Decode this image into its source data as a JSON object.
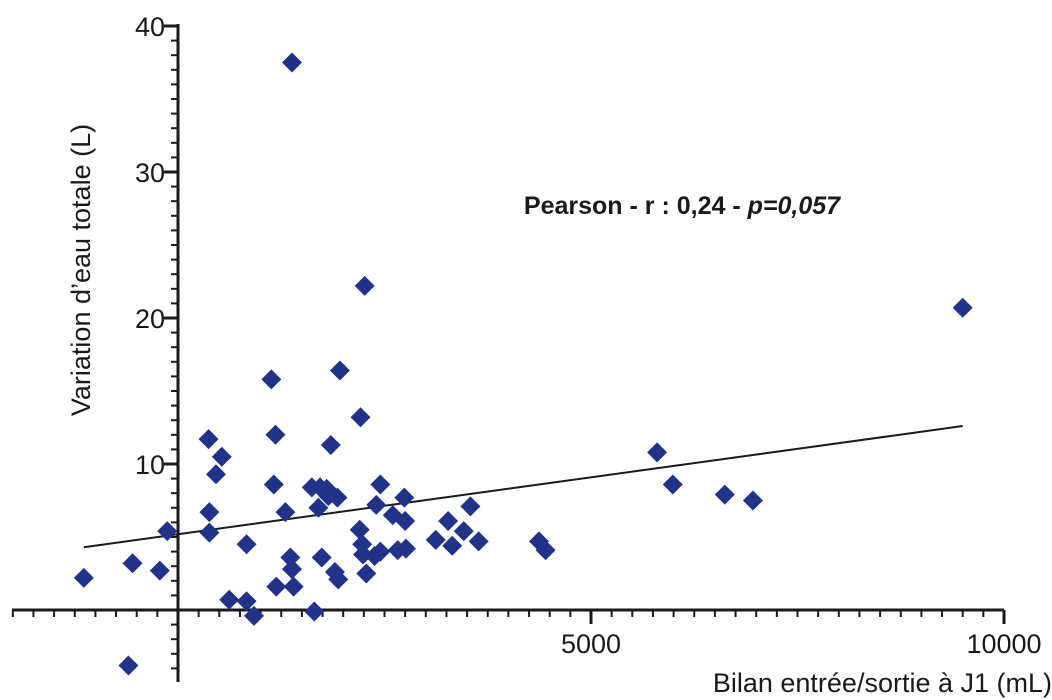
{
  "chart_data": {
    "type": "scatter",
    "xlabel": "Bilan entrée/sortie à J1 (mL)",
    "ylabel": "Variation d’eau totale (L)",
    "x_ticks": [
      {
        "value": 5000,
        "label": "5000"
      },
      {
        "value": 10000,
        "label": "10000"
      }
    ],
    "y_ticks": [
      {
        "value": 10,
        "label": "10"
      },
      {
        "value": 20,
        "label": "20"
      },
      {
        "value": 30,
        "label": "30"
      },
      {
        "value": 40,
        "label": "40"
      }
    ],
    "xlim": [
      -2000,
      10000
    ],
    "ylim": [
      -5,
      40
    ],
    "grid": false,
    "marker": "diamond",
    "marker_color": "#233289",
    "annotation": {
      "prefix": "Pearson - r : 0,24 - ",
      "p_value": "p=0,057"
    },
    "trend_line": {
      "x": [
        -1140,
        9500
      ],
      "y": [
        4.3,
        12.6
      ]
    },
    "points": [
      {
        "x": -1140,
        "y": 2.2
      },
      {
        "x": -550,
        "y": 3.2
      },
      {
        "x": -600,
        "y": -3.8
      },
      {
        "x": -220,
        "y": 2.7
      },
      {
        "x": -130,
        "y": 5.4
      },
      {
        "x": 370,
        "y": 11.7
      },
      {
        "x": 380,
        "y": 6.7
      },
      {
        "x": 380,
        "y": 5.3
      },
      {
        "x": 460,
        "y": 9.3
      },
      {
        "x": 530,
        "y": 10.5
      },
      {
        "x": 620,
        "y": 0.7
      },
      {
        "x": 830,
        "y": 0.6
      },
      {
        "x": 830,
        "y": 4.5
      },
      {
        "x": 920,
        "y": -0.4
      },
      {
        "x": 1130,
        "y": 15.8
      },
      {
        "x": 1160,
        "y": 8.6
      },
      {
        "x": 1180,
        "y": 12.0
      },
      {
        "x": 1190,
        "y": 1.6
      },
      {
        "x": 1300,
        "y": 6.7
      },
      {
        "x": 1360,
        "y": 3.6
      },
      {
        "x": 1380,
        "y": 2.8
      },
      {
        "x": 1400,
        "y": 1.6
      },
      {
        "x": 1380,
        "y": 37.5
      },
      {
        "x": 1620,
        "y": 8.4
      },
      {
        "x": 1650,
        "y": -0.1
      },
      {
        "x": 1700,
        "y": 7.0
      },
      {
        "x": 1720,
        "y": 8.4
      },
      {
        "x": 1740,
        "y": 3.6
      },
      {
        "x": 1800,
        "y": 8.3
      },
      {
        "x": 1820,
        "y": 7.8
      },
      {
        "x": 1850,
        "y": 11.3
      },
      {
        "x": 1900,
        "y": 2.6
      },
      {
        "x": 1930,
        "y": 7.7
      },
      {
        "x": 1940,
        "y": 2.1
      },
      {
        "x": 1960,
        "y": 16.4
      },
      {
        "x": 2200,
        "y": 5.5
      },
      {
        "x": 2210,
        "y": 13.2
      },
      {
        "x": 2230,
        "y": 4.5
      },
      {
        "x": 2240,
        "y": 3.8
      },
      {
        "x": 2260,
        "y": 22.2
      },
      {
        "x": 2280,
        "y": 2.5
      },
      {
        "x": 2380,
        "y": 3.7
      },
      {
        "x": 2400,
        "y": 7.2
      },
      {
        "x": 2450,
        "y": 4.0
      },
      {
        "x": 2450,
        "y": 8.6
      },
      {
        "x": 2600,
        "y": 6.5
      },
      {
        "x": 2660,
        "y": 4.1
      },
      {
        "x": 2740,
        "y": 7.7
      },
      {
        "x": 2750,
        "y": 6.1
      },
      {
        "x": 2760,
        "y": 4.2
      },
      {
        "x": 3120,
        "y": 4.8
      },
      {
        "x": 3270,
        "y": 6.1
      },
      {
        "x": 3320,
        "y": 4.4
      },
      {
        "x": 3460,
        "y": 5.4
      },
      {
        "x": 3540,
        "y": 7.1
      },
      {
        "x": 3640,
        "y": 4.7
      },
      {
        "x": 4370,
        "y": 4.7
      },
      {
        "x": 4450,
        "y": 4.1
      },
      {
        "x": 5800,
        "y": 10.8
      },
      {
        "x": 5990,
        "y": 8.6
      },
      {
        "x": 6620,
        "y": 7.9
      },
      {
        "x": 6960,
        "y": 7.5
      },
      {
        "x": 9500,
        "y": 20.7
      }
    ]
  }
}
